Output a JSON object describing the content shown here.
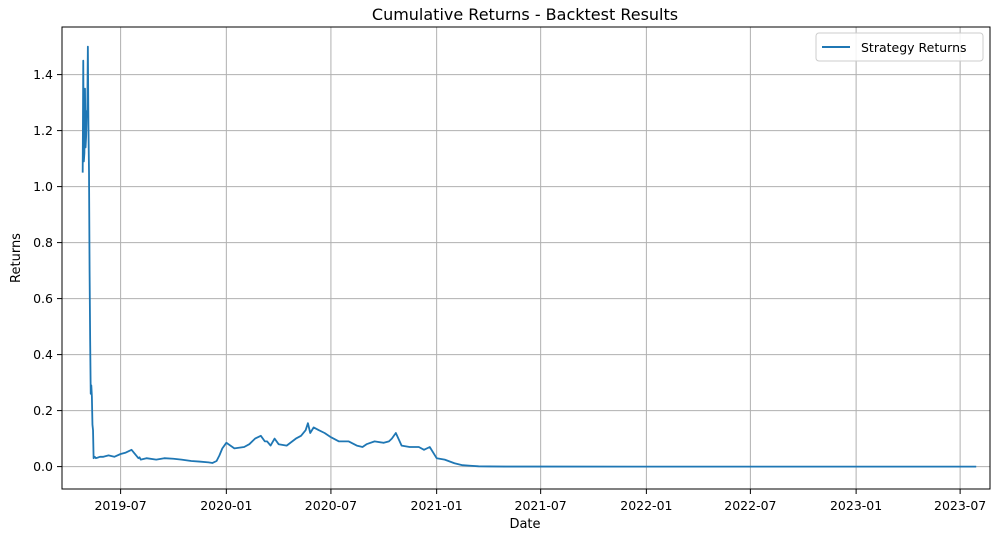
{
  "chart_data": {
    "type": "line",
    "title": "Cumulative Returns - Backtest Results",
    "xlabel": "Date",
    "ylabel": "Returns",
    "grid": true,
    "legend_position": "top-right",
    "x_ticks": [
      "2019-07",
      "2020-01",
      "2020-07",
      "2021-01",
      "2021-07",
      "2022-01",
      "2022-07",
      "2023-01",
      "2023-07"
    ],
    "y_ticks": [
      "0.0",
      "0.2",
      "0.4",
      "0.6",
      "0.8",
      "1.0",
      "1.2",
      "1.4"
    ],
    "xlim": [
      "2019-03-21",
      "2023-08-22"
    ],
    "ylim": [
      -0.08,
      1.57
    ],
    "series": [
      {
        "name": "Strategy Returns",
        "color": "#1f77b4",
        "x": [
          "2019-04-26",
          "2019-04-27",
          "2019-04-28",
          "2019-04-29",
          "2019-04-30",
          "2019-05-01",
          "2019-05-02",
          "2019-05-03",
          "2019-05-04",
          "2019-05-05",
          "2019-05-06",
          "2019-05-07",
          "2019-05-08",
          "2019-05-09",
          "2019-05-10",
          "2019-05-11",
          "2019-05-12",
          "2019-05-13",
          "2019-05-14",
          "2019-05-15",
          "2019-05-17",
          "2019-05-19",
          "2019-05-22",
          "2019-05-26",
          "2019-06-01",
          "2019-06-10",
          "2019-06-20",
          "2019-07-01",
          "2019-07-10",
          "2019-07-20",
          "2019-08-01",
          "2019-08-03",
          "2019-08-05",
          "2019-08-15",
          "2019-09-01",
          "2019-09-15",
          "2019-10-01",
          "2019-10-15",
          "2019-11-01",
          "2019-11-15",
          "2019-12-01",
          "2019-12-08",
          "2019-12-15",
          "2019-12-20",
          "2019-12-25",
          "2020-01-01",
          "2020-01-15",
          "2020-02-01",
          "2020-02-10",
          "2020-02-20",
          "2020-03-01",
          "2020-03-08",
          "2020-03-12",
          "2020-03-18",
          "2020-03-25",
          "2020-04-01",
          "2020-04-15",
          "2020-05-01",
          "2020-05-10",
          "2020-05-18",
          "2020-05-22",
          "2020-05-26",
          "2020-06-01",
          "2020-06-10",
          "2020-06-20",
          "2020-07-01",
          "2020-07-15",
          "2020-08-01",
          "2020-08-15",
          "2020-08-25",
          "2020-09-01",
          "2020-09-15",
          "2020-10-01",
          "2020-10-10",
          "2020-10-15",
          "2020-10-22",
          "2020-11-01",
          "2020-11-15",
          "2020-12-01",
          "2020-12-10",
          "2020-12-20",
          "2021-01-01",
          "2021-01-15",
          "2021-02-01",
          "2021-02-15",
          "2021-03-01",
          "2021-03-15",
          "2021-04-01",
          "2021-05-01",
          "2021-07-01",
          "2022-01-01",
          "2022-07-01",
          "2023-01-01",
          "2023-07-01",
          "2023-07-29"
        ],
        "y": [
          1.05,
          1.45,
          1.09,
          1.12,
          1.35,
          1.14,
          1.18,
          1.27,
          1.26,
          1.5,
          1.22,
          1.05,
          0.7,
          0.45,
          0.26,
          0.29,
          0.25,
          0.15,
          0.13,
          0.03,
          0.035,
          0.03,
          0.032,
          0.035,
          0.035,
          0.04,
          0.035,
          0.045,
          0.05,
          0.06,
          0.03,
          0.033,
          0.025,
          0.03,
          0.025,
          0.03,
          0.028,
          0.025,
          0.02,
          0.018,
          0.015,
          0.013,
          0.02,
          0.04,
          0.065,
          0.085,
          0.065,
          0.07,
          0.08,
          0.1,
          0.11,
          0.09,
          0.09,
          0.075,
          0.1,
          0.08,
          0.075,
          0.1,
          0.11,
          0.13,
          0.155,
          0.12,
          0.14,
          0.13,
          0.12,
          0.105,
          0.09,
          0.09,
          0.075,
          0.07,
          0.08,
          0.09,
          0.085,
          0.09,
          0.1,
          0.12,
          0.075,
          0.07,
          0.07,
          0.06,
          0.07,
          0.03,
          0.025,
          0.012,
          0.005,
          0.003,
          0.001,
          0.0005,
          0.0002,
          0.0001,
          0.0,
          0.0,
          0.0,
          0.0,
          0.0
        ]
      }
    ]
  }
}
